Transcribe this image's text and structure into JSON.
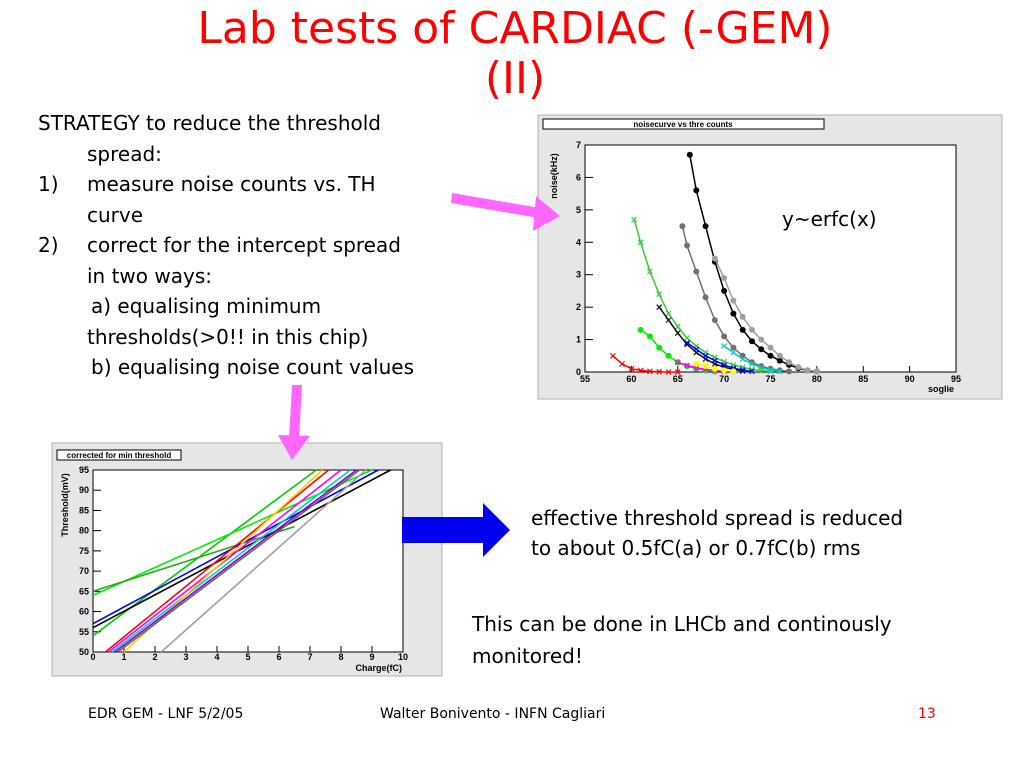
{
  "slide": {
    "title_line1": "Lab tests of  CARDIAC (-GEM)",
    "title_line2": "(II)",
    "strategy": {
      "intro": "STRATEGY to reduce the threshold",
      "intro_cont": "spread:",
      "step1_num": "1)",
      "step1": "measure noise counts vs. TH",
      "step1_cont": "curve",
      "step2_num": "2)",
      "step2": "correct for the intercept spread",
      "step2_cont": "in two ways:",
      "a_line1": "a) equalising minimum",
      "a_line2": "thresholds(>0!! in this chip)",
      "b_line": "b) equalising noise count values"
    },
    "effective_line1": "effective threshold spread is reduced",
    "effective_line2": "to about 0.5fC(a) or 0.7fC(b) rms",
    "lhcb_line1": "This can be done in LHCb and continously",
    "lhcb_line2": "monitored!",
    "footer_left": "EDR GEM - LNF 5/2/05",
    "footer_center": "Walter Bonivento - INFN Cagliari",
    "footer_page": "13",
    "colors": {
      "title": "#ff0000",
      "arrow_pink": "#ff66ff",
      "arrow_blue": "#0000ee"
    }
  },
  "chart_data": [
    {
      "type": "line",
      "title": "noisecurve vs thre counts",
      "annotation": "y~erfc(x)",
      "xlabel": "soglie",
      "ylabel": "noise(kHz)",
      "xlim": [
        55,
        95
      ],
      "ylim": [
        0,
        7
      ],
      "xticks": [
        "55",
        "60",
        "65",
        "70",
        "75",
        "80",
        "85",
        "90",
        "95"
      ],
      "yticks": [
        "0",
        "1",
        "2",
        "3",
        "4",
        "5",
        "6",
        "7"
      ],
      "series": [
        {
          "color": "#000000",
          "marker": "dot",
          "points": [
            [
              66.3,
              6.7
            ],
            [
              67,
              5.6
            ],
            [
              68,
              4.5
            ],
            [
              69,
              3.4
            ],
            [
              70,
              2.5
            ],
            [
              71,
              1.8
            ],
            [
              72,
              1.3
            ],
            [
              73,
              0.95
            ],
            [
              74,
              0.7
            ],
            [
              75,
              0.5
            ],
            [
              76,
              0.35
            ],
            [
              77,
              0.22
            ],
            [
              78,
              0.12
            ],
            [
              79,
              0.05
            ],
            [
              80,
              0.02
            ]
          ]
        },
        {
          "color": "#707070",
          "marker": "dot",
          "points": [
            [
              65.5,
              4.5
            ],
            [
              66,
              3.9
            ],
            [
              67,
              3.1
            ],
            [
              68,
              2.3
            ],
            [
              69,
              1.6
            ],
            [
              70,
              1.1
            ],
            [
              71,
              0.75
            ],
            [
              72,
              0.5
            ],
            [
              73,
              0.3
            ],
            [
              74,
              0.18
            ],
            [
              75,
              0.1
            ],
            [
              76,
              0.05
            ],
            [
              77,
              0.02
            ]
          ]
        },
        {
          "color": "#a0a0a0",
          "marker": "dot",
          "points": [
            [
              69,
              3.5
            ],
            [
              70,
              2.9
            ],
            [
              71,
              2.2
            ],
            [
              72,
              1.7
            ],
            [
              73,
              1.3
            ],
            [
              74,
              1.0
            ],
            [
              75,
              0.75
            ],
            [
              76,
              0.5
            ],
            [
              77,
              0.3
            ],
            [
              78,
              0.15
            ],
            [
              79,
              0.05
            ],
            [
              80,
              0.02
            ]
          ]
        },
        {
          "color": "#33cc33",
          "marker": "star",
          "points": [
            [
              60.3,
              4.7
            ],
            [
              61,
              4.0
            ],
            [
              62,
              3.1
            ],
            [
              63,
              2.4
            ],
            [
              64,
              1.8
            ],
            [
              65,
              1.4
            ],
            [
              66,
              1.05
            ],
            [
              67,
              0.8
            ],
            [
              68,
              0.6
            ],
            [
              69,
              0.45
            ],
            [
              70,
              0.32
            ],
            [
              71,
              0.22
            ],
            [
              72,
              0.14
            ],
            [
              73,
              0.08
            ],
            [
              74,
              0.04
            ],
            [
              75,
              0.02
            ]
          ]
        },
        {
          "color": "#00ee00",
          "marker": "dot",
          "points": [
            [
              61,
              1.3
            ],
            [
              62,
              1.1
            ],
            [
              63,
              0.75
            ],
            [
              64,
              0.5
            ],
            [
              65,
              0.3
            ],
            [
              66,
              0.18
            ],
            [
              67,
              0.1
            ],
            [
              68,
              0.05
            ],
            [
              69,
              0.02
            ]
          ]
        },
        {
          "color": "#111111",
          "marker": "star",
          "points": [
            [
              63,
              2.0
            ],
            [
              64,
              1.6
            ],
            [
              65,
              1.2
            ],
            [
              66,
              0.85
            ],
            [
              67,
              0.6
            ],
            [
              68,
              0.4
            ],
            [
              69,
              0.25
            ],
            [
              70,
              0.15
            ],
            [
              71,
              0.08
            ],
            [
              72,
              0.03
            ]
          ]
        },
        {
          "color": "#0000ff",
          "marker": "star",
          "points": [
            [
              66,
              0.9
            ],
            [
              67,
              0.7
            ],
            [
              68,
              0.5
            ],
            [
              69,
              0.35
            ],
            [
              70,
              0.22
            ],
            [
              71,
              0.12
            ],
            [
              72,
              0.06
            ],
            [
              73,
              0.02
            ]
          ]
        },
        {
          "color": "#00cccc",
          "marker": "star",
          "points": [
            [
              70,
              0.8
            ],
            [
              71,
              0.6
            ],
            [
              72,
              0.4
            ],
            [
              73,
              0.25
            ],
            [
              74,
              0.13
            ],
            [
              75,
              0.06
            ],
            [
              76,
              0.02
            ]
          ]
        },
        {
          "color": "#ff00ff",
          "marker": "star",
          "points": [
            [
              65,
              0.3
            ],
            [
              66,
              0.2
            ],
            [
              67,
              0.13
            ],
            [
              68,
              0.08
            ],
            [
              69,
              0.05
            ],
            [
              70,
              0.02
            ]
          ]
        },
        {
          "color": "#ffff00",
          "marker": "dot",
          "points": [
            [
              67,
              0.25
            ],
            [
              68,
              0.18
            ],
            [
              69,
              0.1
            ],
            [
              70,
              0.05
            ],
            [
              71,
              0.02
            ]
          ]
        },
        {
          "color": "#ff0000",
          "marker": "star",
          "points": [
            [
              58,
              0.5
            ],
            [
              59,
              0.25
            ],
            [
              60,
              0.1
            ],
            [
              61,
              0.05
            ],
            [
              62,
              0.02
            ],
            [
              63,
              0.01
            ],
            [
              64,
              0.0
            ],
            [
              65,
              0.0
            ]
          ]
        }
      ]
    },
    {
      "type": "line",
      "title": "corrected for min threshold",
      "xlabel": "Charge(fC)",
      "ylabel": "Threshold(mV)",
      "xlim": [
        0,
        10
      ],
      "ylim": [
        50,
        95
      ],
      "xticks": [
        "0",
        "1",
        "2",
        "3",
        "4",
        "5",
        "6",
        "7",
        "8",
        "9",
        "10"
      ],
      "yticks": [
        "50",
        "55",
        "60",
        "65",
        "70",
        "75",
        "80",
        "85",
        "90",
        "95"
      ],
      "series": [
        {
          "color": "#00cc00",
          "points": [
            [
              0,
              54
            ],
            [
              7.2,
              95
            ]
          ]
        },
        {
          "color": "#00ee00",
          "points": [
            [
              0,
              64
            ],
            [
              9.0,
              95
            ]
          ]
        },
        {
          "color": "#22aa22",
          "points": [
            [
              0,
              65
            ],
            [
              6.5,
              81
            ]
          ]
        },
        {
          "color": "#0000ff",
          "points": [
            [
              0,
              57
            ],
            [
              9.2,
              95
            ]
          ]
        },
        {
          "color": "#000000",
          "points": [
            [
              0,
              56
            ],
            [
              9.6,
              95
            ]
          ]
        },
        {
          "color": "#ff0000",
          "points": [
            [
              0.4,
              50
            ],
            [
              7.6,
              95
            ]
          ]
        },
        {
          "color": "#ff00ff",
          "points": [
            [
              0.5,
              50
            ],
            [
              8.0,
              95
            ]
          ]
        },
        {
          "color": "#00cccc",
          "points": [
            [
              0.6,
              50
            ],
            [
              8.3,
              95
            ]
          ]
        },
        {
          "color": "#ffcc00",
          "points": [
            [
              1.0,
              50
            ],
            [
              7.4,
              95
            ]
          ]
        },
        {
          "color": "#8800cc",
          "points": [
            [
              0.7,
              50
            ],
            [
              8.5,
              95
            ]
          ]
        },
        {
          "color": "#a0a0a0",
          "points": [
            [
              2.2,
              50
            ],
            [
              8.8,
              95
            ]
          ]
        },
        {
          "color": "#666666",
          "points": [
            [
              0.8,
              50
            ],
            [
              8.6,
              95
            ]
          ]
        }
      ]
    }
  ]
}
